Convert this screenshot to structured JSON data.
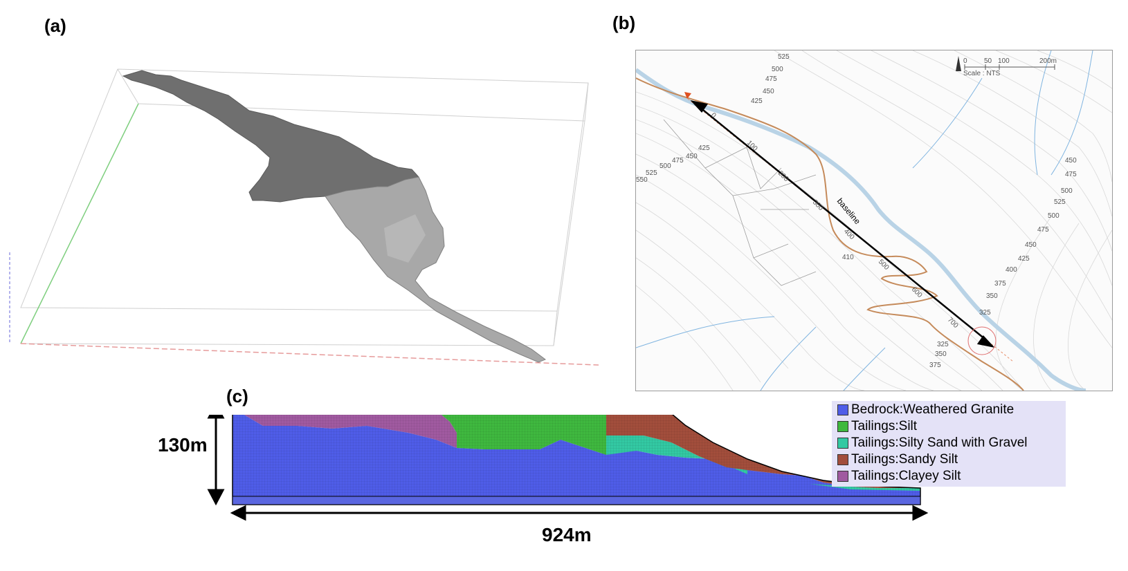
{
  "panels": {
    "a": {
      "label": "(a)"
    },
    "b": {
      "label": "(b)",
      "scale_ticks": [
        "0",
        "50",
        "100",
        "200m"
      ],
      "scale_text": "Scale : NTS",
      "baseline_label": "baseline",
      "contour_labels": [
        "525",
        "500",
        "475",
        "450",
        "425",
        "425",
        "450",
        "475",
        "500",
        "525",
        "550",
        "450",
        "475",
        "500",
        "525",
        "500",
        "475",
        "450",
        "425",
        "400",
        "375",
        "350",
        "325",
        "325",
        "350",
        "375",
        "410"
      ],
      "chainage_labels": [
        "0",
        "100",
        "200",
        "300",
        "400",
        "500",
        "600",
        "700"
      ]
    },
    "c": {
      "label": "(c)",
      "height_label": "130m",
      "width_label": "924m",
      "legend": [
        {
          "name": "Bedrock:Weathered Granite",
          "color": "#4f5de8"
        },
        {
          "name": "Tailings:Silt",
          "color": "#3fb83f"
        },
        {
          "name": "Tailings:Silty Sand with Gravel",
          "color": "#33c9a3"
        },
        {
          "name": "Tailings:Sandy Silt",
          "color": "#a24e3c"
        },
        {
          "name": "Tailings:Clayey Silt",
          "color": "#a05aa0"
        }
      ]
    }
  }
}
